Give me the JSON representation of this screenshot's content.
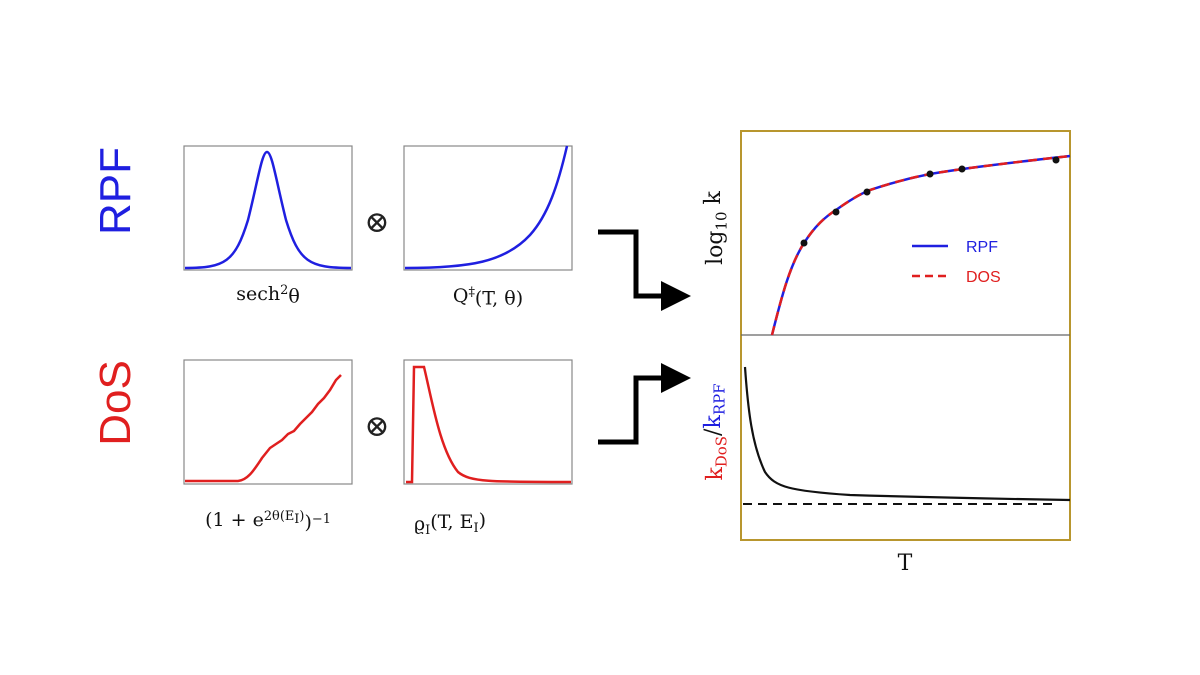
{
  "rows": [
    {
      "method": "RPF",
      "operator": "⊗",
      "factors": [
        {
          "pieces": [
            {
              "text": "sech"
            },
            {
              "text": "2",
              "level": "sup"
            },
            {
              "text": "θ"
            }
          ]
        },
        {
          "pieces": [
            {
              "text": "Q"
            },
            {
              "text": "‡",
              "level": "sup"
            },
            {
              "text": "(T, θ)"
            }
          ]
        }
      ]
    },
    {
      "method": "DoS",
      "operator": "⊗",
      "factors": [
        {
          "pieces": [
            {
              "text": "(1 + e"
            },
            {
              "text": "2θ(E",
              "level": "sup"
            },
            {
              "text": "I",
              "level": "supsub"
            },
            {
              "text": ")",
              "level": "sup"
            },
            {
              "text": ")"
            },
            {
              "text": "−1",
              "level": "sup"
            }
          ]
        },
        {
          "pieces": [
            {
              "text": "ϱ"
            },
            {
              "text": "I",
              "level": "sub"
            },
            {
              "text": "(T, E"
            },
            {
              "text": "I",
              "level": "sub"
            },
            {
              "text": ")"
            }
          ]
        }
      ]
    }
  ],
  "result": {
    "top_ylabel": {
      "pieces": [
        {
          "text": "log"
        },
        {
          "text": "10",
          "level": "sub"
        },
        {
          "text": " k"
        }
      ]
    },
    "legend": [
      "RPF",
      "DOS"
    ],
    "bottom_ylabel": {
      "pieces": [
        {
          "text": "k",
          "color": "red"
        },
        {
          "text": "DoS",
          "level": "sub",
          "color": "red"
        },
        {
          "text": "/"
        },
        {
          "text": "k",
          "color": "blue"
        },
        {
          "text": "RPF",
          "level": "sub",
          "color": "blue"
        }
      ]
    },
    "xlabel": "T"
  }
}
